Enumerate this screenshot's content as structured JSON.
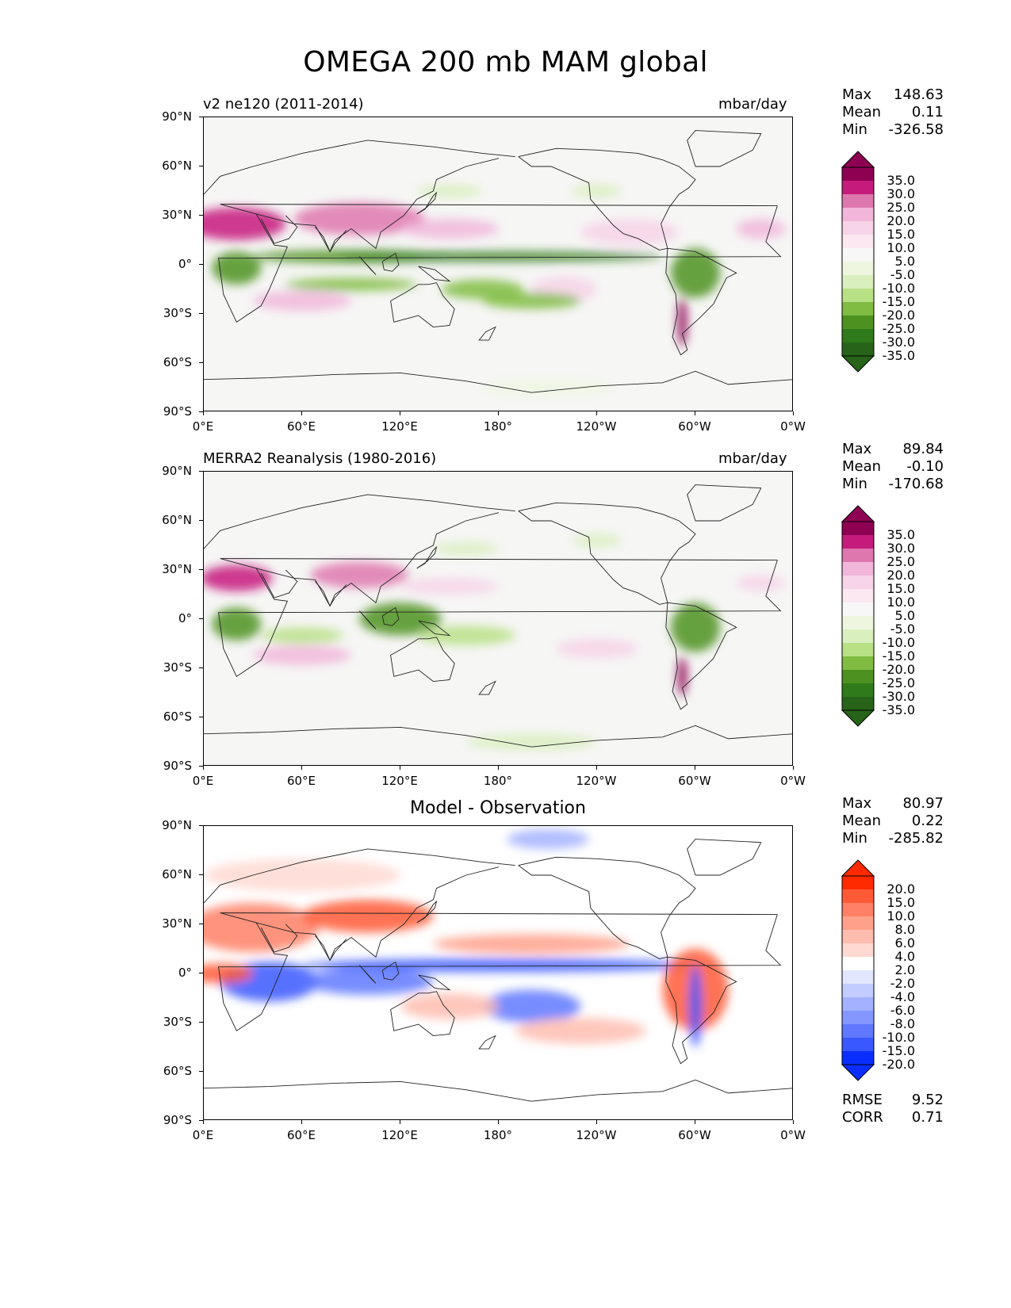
{
  "figure": {
    "title": "OMEGA 200 mb MAM global"
  },
  "axes": {
    "lat_ticks": [
      "90°N",
      "60°N",
      "30°N",
      "0°",
      "30°S",
      "60°S",
      "90°S"
    ],
    "lon_ticks": [
      "0°E",
      "60°E",
      "120°E",
      "180°",
      "120°W",
      "60°W",
      "0°W"
    ]
  },
  "panels": [
    {
      "left_label": "v2 ne120 (2011-2014)",
      "right_label": "mbar/day",
      "center_title": "",
      "stats": {
        "max_label": "Max",
        "max": "148.63",
        "mean_label": "Mean",
        "mean": "0.11",
        "min_label": "Min",
        "min": "-326.58"
      },
      "colorbar_labels": [
        "35.0",
        "30.0",
        "25.0",
        "20.0",
        "15.0",
        "10.0",
        "5.0",
        "-5.0",
        "-10.0",
        "-15.0",
        "-20.0",
        "-25.0",
        "-30.0",
        "-35.0"
      ]
    },
    {
      "left_label": "MERRA2 Reanalysis (1980-2016)",
      "right_label": "mbar/day",
      "center_title": "",
      "stats": {
        "max_label": "Max",
        "max": "89.84",
        "mean_label": "Mean",
        "mean": "-0.10",
        "min_label": "Min",
        "min": "-170.68"
      },
      "colorbar_labels": [
        "35.0",
        "30.0",
        "25.0",
        "20.0",
        "15.0",
        "10.0",
        "5.0",
        "-5.0",
        "-10.0",
        "-15.0",
        "-20.0",
        "-25.0",
        "-30.0",
        "-35.0"
      ]
    },
    {
      "left_label": "",
      "right_label": "",
      "center_title": "Model - Observation",
      "stats": {
        "max_label": "Max",
        "max": "80.97",
        "mean_label": "Mean",
        "mean": "0.22",
        "min_label": "Min",
        "min": "-285.82"
      },
      "colorbar_labels": [
        "20.0",
        "15.0",
        "10.0",
        "8.0",
        "6.0",
        "4.0",
        "2.0",
        "-2.0",
        "-4.0",
        "-6.0",
        "-8.0",
        "-10.0",
        "-15.0",
        "-20.0"
      ],
      "metrics": {
        "rmse_label": "RMSE",
        "rmse": "9.52",
        "corr_label": "CORR",
        "corr": "0.71"
      }
    }
  ],
  "colors": {
    "piyg": [
      "#8e0152",
      "#c51b7d",
      "#de77ae",
      "#f1b6da",
      "#f7d4e7",
      "#fbe8f1",
      "#f7f7f7",
      "#eef6e0",
      "#d9efbe",
      "#b8e186",
      "#7fbc41",
      "#4d9221",
      "#2f7a1a",
      "#276419"
    ],
    "bwr": [
      "#ff2a00",
      "#ff5a36",
      "#ff8066",
      "#ffa08a",
      "#ffbdb0",
      "#ffd9d2",
      "#ffffff",
      "#e2e7ff",
      "#c2ccff",
      "#a3b2ff",
      "#8397ff",
      "#5f78ff",
      "#3a58ff",
      "#0a2eff"
    ]
  }
}
